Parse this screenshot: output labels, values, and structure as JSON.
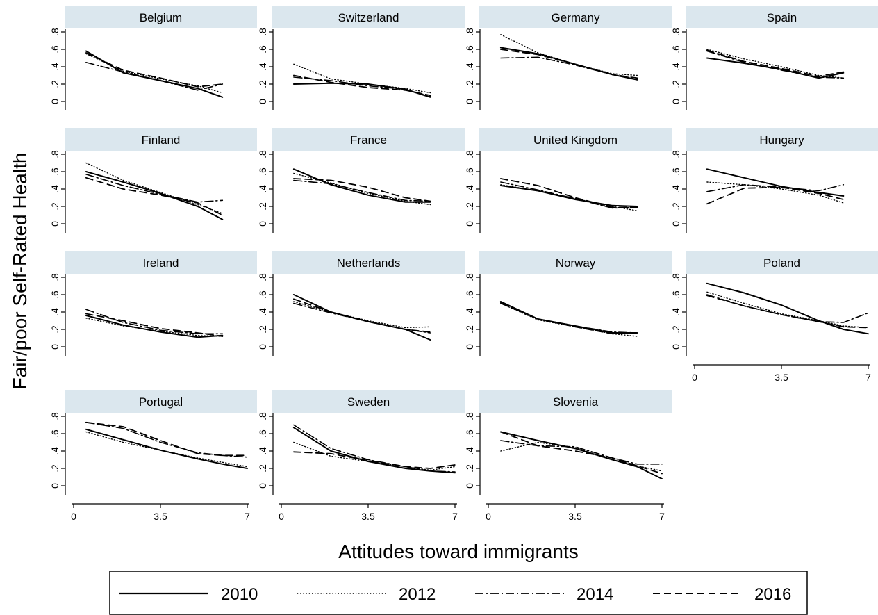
{
  "figure": {
    "ylabel": "Fair/poor Self-Rated Health",
    "xlabel": "Attitudes toward immigrants",
    "colors": {
      "strip": "#dbe7ee",
      "line": "#000000"
    }
  },
  "chart_data": {
    "type": "line",
    "panel_layout": {
      "columns": 4,
      "rows": 4
    },
    "x_ticks": [
      0,
      3.5,
      7
    ],
    "x_tick_labels": [
      "0",
      "3.5",
      "7"
    ],
    "y_ticks": [
      0,
      0.2,
      0.4,
      0.6,
      0.8
    ],
    "y_tick_labels": [
      "0",
      ".2",
      ".4",
      ".6",
      ".8"
    ],
    "xlim": [
      0,
      7
    ],
    "ylim": [
      0,
      0.8
    ],
    "legend": {
      "placement": "bottom",
      "entries": [
        {
          "label": "2010",
          "dash": "solid"
        },
        {
          "label": "2012",
          "dash": "dotted"
        },
        {
          "label": "2014",
          "dash": "dash-dot"
        },
        {
          "label": "2016",
          "dash": "dashed"
        }
      ]
    },
    "panels": [
      {
        "name": "Belgium",
        "x": [
          0.5,
          2,
          3.5,
          5,
          6
        ],
        "series": [
          {
            "year": "2010",
            "values": [
              0.58,
              0.33,
              0.24,
              0.15,
              0.05
            ]
          },
          {
            "year": "2012",
            "values": [
              0.55,
              0.35,
              0.26,
              0.18,
              0.1
            ]
          },
          {
            "year": "2014",
            "values": [
              0.45,
              0.34,
              0.24,
              0.13,
              0.2
            ]
          },
          {
            "year": "2016",
            "values": [
              0.56,
              0.36,
              0.27,
              0.17,
              0.2
            ]
          }
        ]
      },
      {
        "name": "Switzerland",
        "x": [
          0.5,
          2,
          3.5,
          5,
          6
        ],
        "series": [
          {
            "year": "2010",
            "values": [
              0.2,
              0.21,
              0.2,
              0.14,
              0.05
            ]
          },
          {
            "year": "2012",
            "values": [
              0.43,
              0.26,
              0.2,
              0.15,
              0.1
            ]
          },
          {
            "year": "2014",
            "values": [
              0.28,
              0.24,
              0.18,
              0.14,
              0.06
            ]
          },
          {
            "year": "2016",
            "values": [
              0.3,
              0.22,
              0.16,
              0.13,
              0.07
            ]
          }
        ]
      },
      {
        "name": "Germany",
        "x": [
          0.5,
          2,
          3.5,
          5,
          6
        ],
        "series": [
          {
            "year": "2010",
            "values": [
              0.62,
              0.55,
              0.43,
              0.31,
              0.25
            ]
          },
          {
            "year": "2012",
            "values": [
              0.77,
              0.56,
              0.43,
              0.32,
              0.3
            ]
          },
          {
            "year": "2014",
            "values": [
              0.5,
              0.51,
              0.42,
              0.31,
              0.26
            ]
          },
          {
            "year": "2016",
            "values": [
              0.6,
              0.54,
              0.43,
              0.31,
              0.27
            ]
          }
        ]
      },
      {
        "name": "Spain",
        "x": [
          0.5,
          2,
          3.5,
          5,
          6
        ],
        "series": [
          {
            "year": "2010",
            "values": [
              0.5,
              0.44,
              0.37,
              0.27,
              0.33
            ]
          },
          {
            "year": "2012",
            "values": [
              0.6,
              0.49,
              0.4,
              0.3,
              0.27
            ]
          },
          {
            "year": "2014",
            "values": [
              0.58,
              0.45,
              0.36,
              0.28,
              0.27
            ]
          },
          {
            "year": "2016",
            "values": [
              0.59,
              0.46,
              0.38,
              0.29,
              0.34
            ]
          }
        ]
      },
      {
        "name": "Finland",
        "x": [
          0.5,
          2,
          3.5,
          5,
          6
        ],
        "series": [
          {
            "year": "2010",
            "values": [
              0.6,
              0.48,
              0.35,
              0.2,
              0.05
            ]
          },
          {
            "year": "2012",
            "values": [
              0.7,
              0.5,
              0.36,
              0.22,
              0.12
            ]
          },
          {
            "year": "2014",
            "values": [
              0.57,
              0.44,
              0.34,
              0.25,
              0.27
            ]
          },
          {
            "year": "2016",
            "values": [
              0.53,
              0.4,
              0.33,
              0.24,
              0.1
            ]
          }
        ]
      },
      {
        "name": "France",
        "x": [
          0.5,
          2,
          3.5,
          5,
          6
        ],
        "series": [
          {
            "year": "2010",
            "values": [
              0.63,
              0.45,
              0.33,
              0.25,
              0.25
            ]
          },
          {
            "year": "2012",
            "values": [
              0.58,
              0.47,
              0.35,
              0.26,
              0.22
            ]
          },
          {
            "year": "2014",
            "values": [
              0.5,
              0.46,
              0.36,
              0.27,
              0.26
            ]
          },
          {
            "year": "2016",
            "values": [
              0.52,
              0.5,
              0.42,
              0.3,
              0.26
            ]
          }
        ]
      },
      {
        "name": "United Kingdom",
        "x": [
          0.5,
          2,
          3.5,
          5,
          6
        ],
        "series": [
          {
            "year": "2010",
            "values": [
              0.44,
              0.38,
              0.28,
              0.21,
              0.2
            ]
          },
          {
            "year": "2012",
            "values": [
              0.45,
              0.38,
              0.29,
              0.2,
              0.15
            ]
          },
          {
            "year": "2014",
            "values": [
              0.48,
              0.39,
              0.29,
              0.18,
              0.19
            ]
          },
          {
            "year": "2016",
            "values": [
              0.52,
              0.44,
              0.3,
              0.19,
              0.19
            ]
          }
        ]
      },
      {
        "name": "Hungary",
        "x": [
          0.5,
          2,
          3.5,
          5,
          6
        ],
        "series": [
          {
            "year": "2010",
            "values": [
              0.63,
              0.53,
              0.43,
              0.36,
              0.32
            ]
          },
          {
            "year": "2012",
            "values": [
              0.48,
              0.45,
              0.4,
              0.33,
              0.24
            ]
          },
          {
            "year": "2014",
            "values": [
              0.37,
              0.45,
              0.42,
              0.38,
              0.45
            ]
          },
          {
            "year": "2016",
            "values": [
              0.23,
              0.41,
              0.42,
              0.35,
              0.28
            ]
          }
        ]
      },
      {
        "name": "Ireland",
        "x": [
          0.5,
          2,
          3.5,
          5,
          6
        ],
        "series": [
          {
            "year": "2010",
            "values": [
              0.36,
              0.25,
              0.17,
              0.11,
              0.13
            ]
          },
          {
            "year": "2012",
            "values": [
              0.33,
              0.24,
              0.18,
              0.13,
              0.12
            ]
          },
          {
            "year": "2014",
            "values": [
              0.43,
              0.28,
              0.19,
              0.15,
              0.15
            ]
          },
          {
            "year": "2016",
            "values": [
              0.38,
              0.3,
              0.21,
              0.16,
              0.12
            ]
          }
        ]
      },
      {
        "name": "Netherlands",
        "x": [
          0.5,
          2,
          3.5,
          5,
          6
        ],
        "series": [
          {
            "year": "2010",
            "values": [
              0.6,
              0.4,
              0.29,
              0.2,
              0.08
            ]
          },
          {
            "year": "2012",
            "values": [
              0.52,
              0.4,
              0.3,
              0.22,
              0.23
            ]
          },
          {
            "year": "2014",
            "values": [
              0.5,
              0.39,
              0.29,
              0.2,
              0.16
            ]
          },
          {
            "year": "2016",
            "values": [
              0.55,
              0.4,
              0.29,
              0.2,
              0.17
            ]
          }
        ]
      },
      {
        "name": "Norway",
        "x": [
          0.5,
          2,
          3.5,
          5,
          6
        ],
        "series": [
          {
            "year": "2010",
            "values": [
              0.52,
              0.32,
              0.24,
              0.16,
              0.16
            ]
          },
          {
            "year": "2012",
            "values": [
              0.5,
              0.31,
              0.23,
              0.15,
              0.12
            ]
          },
          {
            "year": "2014",
            "values": [
              0.5,
              0.32,
              0.24,
              0.17,
              0.16
            ]
          },
          {
            "year": "2016",
            "values": [
              0.51,
              0.32,
              0.23,
              0.15,
              0.16
            ]
          }
        ]
      },
      {
        "name": "Poland",
        "x": [
          0.5,
          2,
          3.5,
          5,
          6,
          7
        ],
        "series": [
          {
            "year": "2010",
            "values": [
              0.73,
              0.62,
              0.48,
              0.3,
              0.2,
              0.15
            ]
          },
          {
            "year": "2012",
            "values": [
              0.63,
              0.5,
              0.38,
              0.3,
              0.24,
              0.22
            ]
          },
          {
            "year": "2014",
            "values": [
              0.6,
              0.47,
              0.37,
              0.29,
              0.28,
              0.39
            ]
          },
          {
            "year": "2016",
            "values": [
              0.59,
              0.47,
              0.37,
              0.29,
              0.23,
              0.22
            ]
          }
        ]
      },
      {
        "name": "Portugal",
        "x": [
          0.5,
          2,
          3.5,
          5,
          6,
          7
        ],
        "series": [
          {
            "year": "2010",
            "values": [
              0.65,
              0.53,
              0.41,
              0.31,
              0.25,
              0.2
            ]
          },
          {
            "year": "2012",
            "values": [
              0.62,
              0.5,
              0.41,
              0.32,
              0.27,
              0.22
            ]
          },
          {
            "year": "2014",
            "values": [
              0.73,
              0.66,
              0.5,
              0.38,
              0.35,
              0.33
            ]
          },
          {
            "year": "2016",
            "values": [
              0.73,
              0.68,
              0.52,
              0.37,
              0.35,
              0.35
            ]
          }
        ]
      },
      {
        "name": "Sweden",
        "x": [
          0.5,
          2,
          3.5,
          5,
          6,
          7
        ],
        "series": [
          {
            "year": "2010",
            "values": [
              0.67,
              0.4,
              0.28,
              0.2,
              0.17,
              0.15
            ]
          },
          {
            "year": "2012",
            "values": [
              0.5,
              0.34,
              0.28,
              0.22,
              0.18,
              0.22
            ]
          },
          {
            "year": "2014",
            "values": [
              0.7,
              0.43,
              0.3,
              0.22,
              0.17,
              0.16
            ]
          },
          {
            "year": "2016",
            "values": [
              0.39,
              0.37,
              0.29,
              0.22,
              0.2,
              0.24
            ]
          }
        ]
      },
      {
        "name": "Slovenia",
        "x": [
          0.5,
          2,
          3.5,
          5,
          6,
          7
        ],
        "series": [
          {
            "year": "2010",
            "values": [
              0.62,
              0.52,
              0.43,
              0.3,
              0.22,
              0.08
            ]
          },
          {
            "year": "2012",
            "values": [
              0.4,
              0.5,
              0.44,
              0.3,
              0.23,
              0.17
            ]
          },
          {
            "year": "2014",
            "values": [
              0.52,
              0.46,
              0.45,
              0.32,
              0.25,
              0.25
            ]
          },
          {
            "year": "2016",
            "values": [
              0.62,
              0.46,
              0.4,
              0.32,
              0.23,
              0.14
            ]
          }
        ]
      }
    ]
  }
}
